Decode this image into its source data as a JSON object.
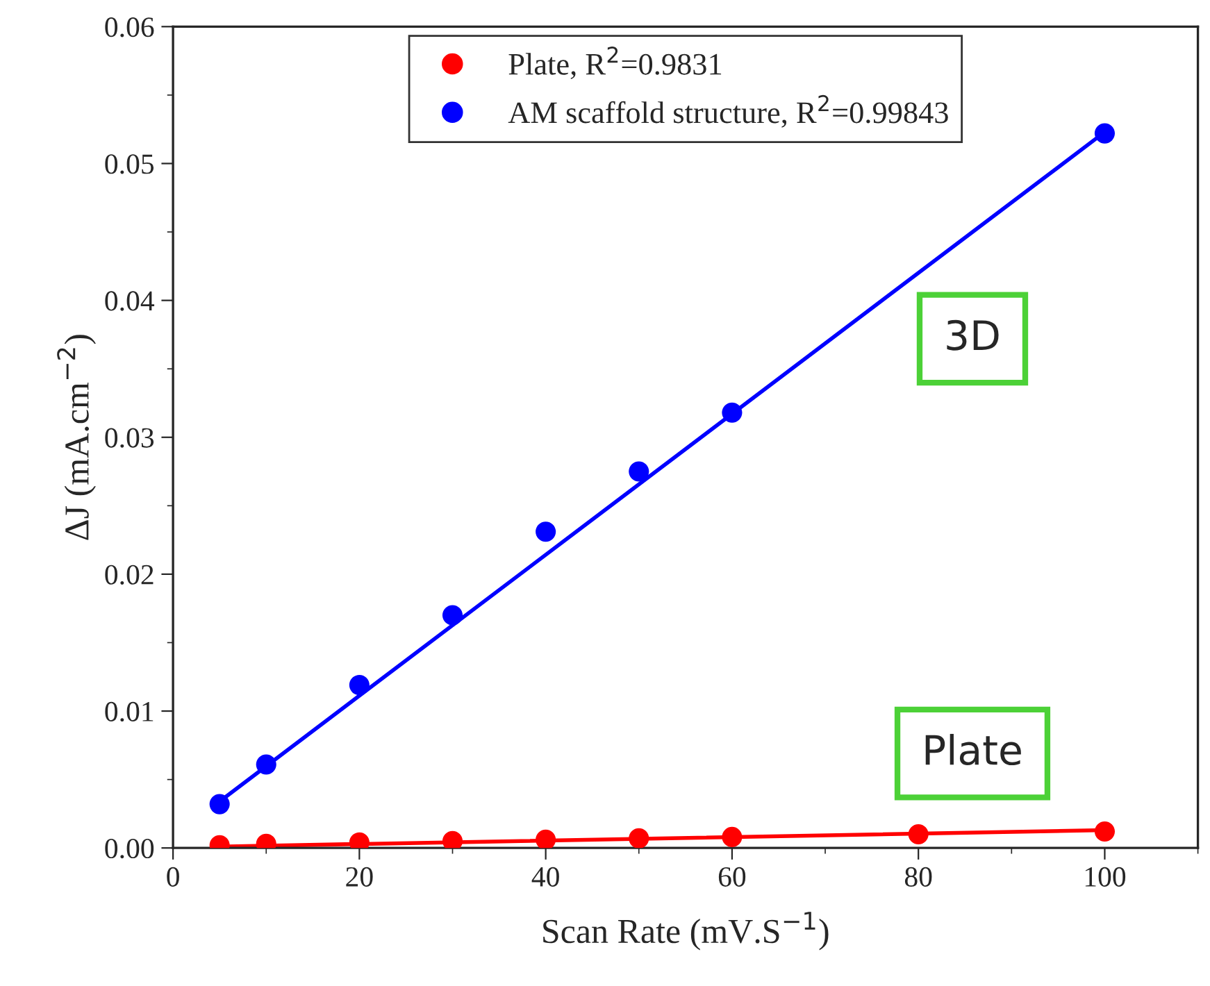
{
  "chart_data": {
    "type": "scatter",
    "xlabel": "Scan Rate (mV.S$^{−1}$)",
    "ylabel": "ΔJ (mA.cm$^{−2}$)",
    "series": [
      {
        "name": "Plate, R$^{2}$=0.9831",
        "color": "#ff0000",
        "marker": "circle",
        "x": [
          5,
          10,
          20,
          30,
          40,
          50,
          60,
          80,
          100
        ],
        "values": [
          0.0002,
          0.0003,
          0.0004,
          0.0005,
          0.0006,
          0.0007,
          0.0008,
          0.001,
          0.0012
        ]
      },
      {
        "name": "AM scaffold structure, R$^{2}$=0.99843",
        "color": "#0000ff",
        "marker": "circle",
        "x": [
          5,
          10,
          20,
          30,
          40,
          50,
          60,
          100
        ],
        "values": [
          0.0032,
          0.0061,
          0.0119,
          0.017,
          0.0231,
          0.0275,
          0.0318,
          0.0522
        ]
      },
      {
        "color": "#ff0000",
        "type": "line",
        "x": [
          5,
          100
        ],
        "values": [
          0.0001,
          0.0013
        ]
      },
      {
        "color": "#0000ff",
        "type": "line",
        "x": [
          5,
          100
        ],
        "values": [
          0.0034,
          0.0523
        ]
      }
    ],
    "xlim": [
      0,
      110
    ],
    "ylim": [
      0,
      0.06
    ],
    "xticks": [
      0,
      20,
      40,
      60,
      80,
      100
    ],
    "yticks": [
      {
        "value": 0,
        "label": "0.00"
      },
      {
        "value": 0.01,
        "label": "0.01"
      },
      {
        "value": 0.02,
        "label": "0.02"
      },
      {
        "value": 0.03,
        "label": "0.03"
      },
      {
        "value": 0.04,
        "label": "0.04"
      },
      {
        "value": 0.05,
        "label": "0.05"
      },
      {
        "value": 0.06,
        "label": "0.06"
      }
    ],
    "annotations": [
      "3D",
      "Plate"
    ],
    "legend": "top",
    "grid": false
  }
}
